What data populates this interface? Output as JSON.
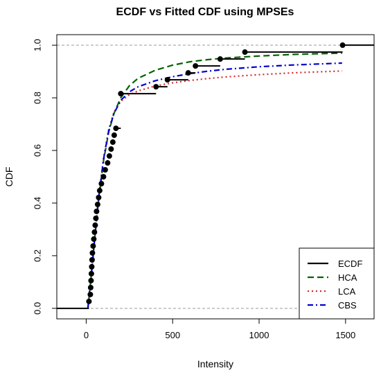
{
  "chart_data": {
    "type": "line",
    "title": "ECDF vs Fitted CDF using MPSEs",
    "xlabel": "Intensity",
    "ylabel": "CDF",
    "xlim": [
      -170,
      1665
    ],
    "ylim": [
      -0.04,
      1.04
    ],
    "x_ticks": [
      0,
      500,
      1000,
      1500
    ],
    "y_ticks": [
      0.0,
      0.2,
      0.4,
      0.6,
      0.8,
      1.0
    ],
    "y_tick_labels": [
      "0.0",
      "0.2",
      "0.4",
      "0.6",
      "0.8",
      "1.0"
    ],
    "reference_lines_y": [
      0,
      1
    ],
    "grid": false,
    "legend_position": "bottom-right",
    "ecdf": {
      "name": "ECDF",
      "color": "#000000",
      "x": [
        16,
        24,
        26,
        28,
        30,
        32,
        34,
        36,
        40,
        44,
        48,
        52,
        56,
        60,
        66,
        72,
        78,
        88,
        100,
        110,
        124,
        134,
        144,
        154,
        162,
        172,
        200,
        404,
        470,
        590,
        632,
        775,
        918,
        1483
      ],
      "y": [
        0.0263,
        0.0526,
        0.0789,
        0.1053,
        0.1316,
        0.1579,
        0.1842,
        0.2105,
        0.2368,
        0.2632,
        0.2895,
        0.3158,
        0.3421,
        0.3684,
        0.3947,
        0.4211,
        0.4474,
        0.4737,
        0.5,
        0.5263,
        0.5526,
        0.5789,
        0.6053,
        0.6316,
        0.6579,
        0.6842,
        0.8158,
        0.8421,
        0.8684,
        0.8947,
        0.9211,
        0.9474,
        0.9737,
        1.0
      ]
    },
    "series": [
      {
        "name": "HCA",
        "color": "#006400",
        "dash": "dashed",
        "x": [
          10,
          30,
          50,
          70,
          100,
          130,
          160,
          200,
          250,
          300,
          400,
          500,
          600,
          700,
          800,
          1000,
          1200,
          1480
        ],
        "y": [
          0.0,
          0.13,
          0.27,
          0.4,
          0.56,
          0.67,
          0.74,
          0.8,
          0.846,
          0.874,
          0.905,
          0.924,
          0.937,
          0.945,
          0.951,
          0.959,
          0.965,
          0.97
        ]
      },
      {
        "name": "LCA",
        "color": "#d62728",
        "dash": "dotted",
        "x": [
          10,
          30,
          50,
          70,
          100,
          130,
          160,
          200,
          250,
          300,
          400,
          500,
          600,
          700,
          800,
          1000,
          1200,
          1480
        ],
        "y": [
          0.0,
          0.13,
          0.27,
          0.41,
          0.57,
          0.68,
          0.745,
          0.787,
          0.812,
          0.826,
          0.845,
          0.857,
          0.866,
          0.873,
          0.879,
          0.888,
          0.895,
          0.902
        ]
      },
      {
        "name": "CBS",
        "color": "#0000cc",
        "dash": "dashdot",
        "x": [
          10,
          30,
          50,
          70,
          100,
          130,
          160,
          200,
          250,
          300,
          400,
          500,
          600,
          700,
          800,
          1000,
          1200,
          1480
        ],
        "y": [
          0.0,
          0.13,
          0.27,
          0.41,
          0.565,
          0.675,
          0.74,
          0.79,
          0.823,
          0.842,
          0.865,
          0.88,
          0.892,
          0.901,
          0.908,
          0.918,
          0.925,
          0.932
        ]
      }
    ],
    "legend": [
      "ECDF",
      "HCA",
      "LCA",
      "CBS"
    ]
  }
}
